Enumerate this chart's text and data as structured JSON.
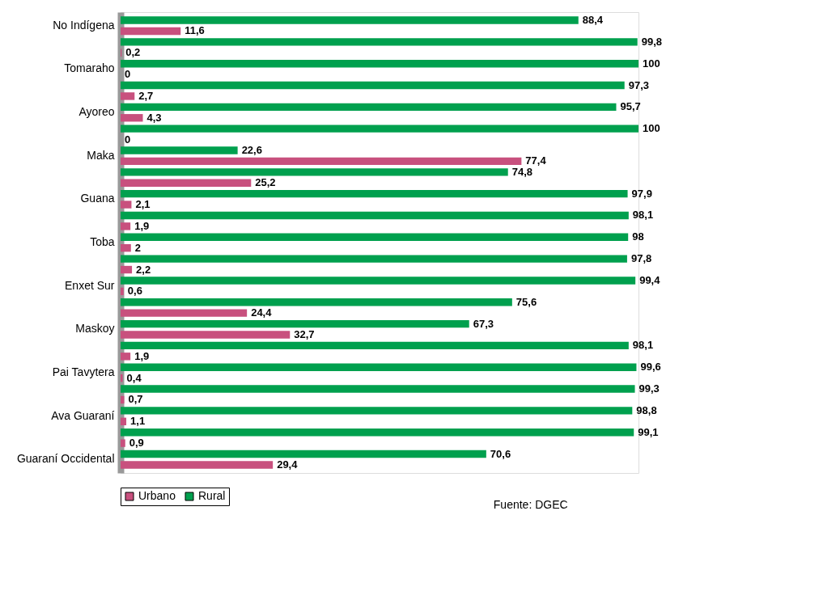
{
  "chart_data": {
    "type": "bar",
    "orientation": "horizontal",
    "categories": [
      "No Indígena",
      null,
      "Tomaraho",
      null,
      "Ayoreo",
      null,
      "Maka",
      null,
      "Guana",
      null,
      "Toba",
      null,
      "Enxet Sur",
      null,
      "Maskoy",
      null,
      "Pai Tavytera",
      null,
      "Ava Guaraní",
      null,
      "Guaraní Occidental"
    ],
    "series": [
      {
        "name": "Rural",
        "color": "#00a04e",
        "values": [
          88.4,
          99.8,
          100,
          97.3,
          95.7,
          100,
          22.6,
          74.8,
          97.9,
          98.1,
          98,
          97.8,
          99.4,
          75.6,
          67.3,
          98.1,
          99.6,
          99.3,
          98.8,
          99.1,
          70.6
        ],
        "value_labels": [
          "88,4",
          "99,8",
          "100",
          "97,3",
          "95,7",
          "100",
          "22,6",
          "74,8",
          "97,9",
          "98,1",
          "98",
          "97,8",
          "99,4",
          "75,6",
          "67,3",
          "98,1",
          "99,6",
          "99,3",
          "98,8",
          "99,1",
          "70,6"
        ]
      },
      {
        "name": "Urbano",
        "color": "#c8507e",
        "values": [
          11.6,
          0.2,
          0,
          2.7,
          4.3,
          0,
          77.4,
          25.2,
          2.1,
          1.9,
          2,
          2.2,
          0.6,
          24.4,
          32.7,
          1.9,
          0.4,
          0.7,
          1.1,
          0.9,
          29.4
        ],
        "value_labels": [
          "11,6",
          "0,2",
          "0",
          "2,7",
          "4,3",
          "0",
          "77,4",
          "25,2",
          "2,1",
          "1,9",
          "2",
          "2,2",
          "0,6",
          "24,4",
          "32,7",
          "1,9",
          "0,4",
          "0,7",
          "1,1",
          "0,9",
          "29,4"
        ]
      }
    ],
    "legend": "bottom",
    "annotations": [
      "Fuente: DGEC"
    ]
  }
}
